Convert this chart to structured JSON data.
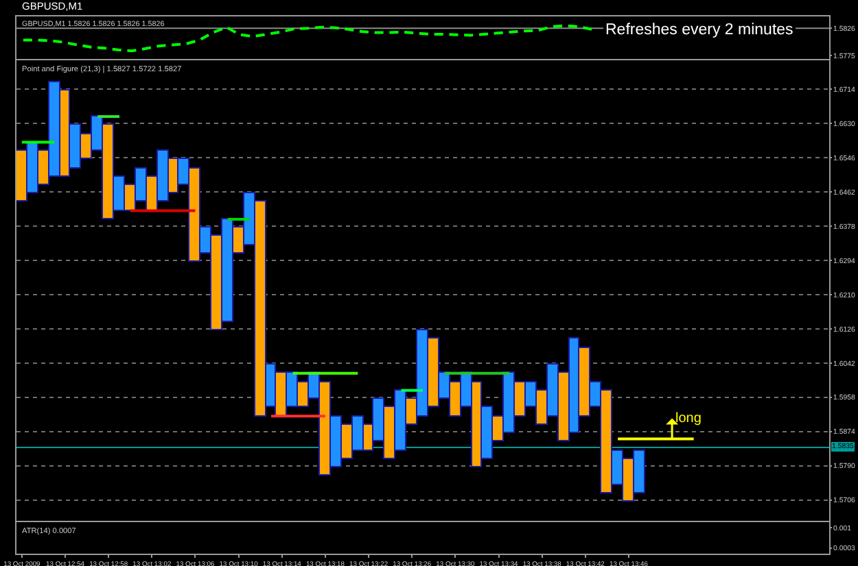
{
  "chart_data": [
    {
      "type": "line",
      "title": "GBPUSD,M1",
      "subtitle": "GBPUSD,M1 1.5826 1.5826 1.5826 1.5826",
      "categories": [
        null,
        null,
        null,
        null,
        null,
        null,
        null,
        null,
        null,
        null,
        null,
        null,
        null,
        null,
        null,
        null,
        null,
        null,
        null,
        null,
        null,
        null,
        null,
        null,
        null,
        null,
        null,
        null,
        null,
        null,
        null,
        null,
        null,
        null,
        null,
        null,
        null,
        null,
        null,
        null,
        null,
        null,
        null,
        null,
        null,
        null,
        null,
        null,
        null,
        null,
        null,
        null,
        null,
        null,
        null,
        null,
        null,
        null,
        null,
        null
      ],
      "series": [
        {
          "color": "#00ff00",
          "values": [
            1.5804,
            1.5804,
            1.5803,
            1.58,
            1.5795,
            1.5791,
            1.5789,
            1.5786,
            1.5784,
            1.5788,
            1.5793,
            1.5795,
            1.5797,
            1.5804,
            1.5818,
            1.5828,
            1.5814,
            1.5811,
            1.5815,
            1.5819,
            1.5825,
            1.5826,
            1.5828,
            1.5827,
            1.5824,
            1.582,
            1.5818,
            1.5818,
            1.5819,
            1.5817,
            1.5815,
            1.5815,
            1.5814,
            1.5813,
            1.5815,
            1.5817,
            1.5819,
            1.5821,
            1.5822,
            1.5829,
            1.5831,
            1.5829,
            1.5824,
            null,
            null,
            null,
            null,
            null,
            null,
            null,
            null,
            null,
            null,
            null,
            null,
            null,
            null,
            null,
            null,
            null
          ]
        }
      ],
      "line_style": "dashed",
      "ylim": [
        1.5769,
        1.5848
      ],
      "yticks": [
        1.5826,
        1.5775
      ],
      "tick_labels": "y",
      "ref_lines": [
        {
          "axis": "y",
          "value": 1.5826,
          "color": "#8c8c8c"
        }
      ],
      "annotations": [
        "Refreshes every 2 minutes"
      ]
    },
    {
      "type": "bar",
      "title": "Point and Figure (21,3) | 1.5827 1.5722 1.5827",
      "categories": [
        null,
        null,
        null,
        null,
        null,
        null,
        null,
        null,
        null,
        null,
        null,
        null,
        null,
        null,
        null,
        null,
        null,
        null,
        null,
        null,
        null,
        null,
        null,
        null,
        null,
        null,
        null,
        null,
        null,
        null,
        null,
        null,
        null,
        null,
        null,
        null,
        null,
        null,
        null,
        null,
        null,
        null,
        null,
        null,
        null,
        null,
        null,
        null,
        null,
        null,
        null,
        null,
        null,
        null,
        null,
        null,
        null,
        null,
        null,
        null,
        null,
        null,
        null,
        null,
        null,
        null,
        null,
        null,
        null,
        null,
        null,
        null,
        null,
        null,
        null
      ],
      "series": [
        {
          "values": [
            0.0126,
            0.0126,
            0.0084,
            0.0231,
            0.021,
            0.0105,
            0.0063,
            0.0084,
            0.0231,
            0.0084,
            0.0063,
            0.0084,
            0.0084,
            0.0126,
            0.0084,
            0.0063,
            0.0231,
            0.0063,
            0.0231,
            0.0252,
            0.0063,
            0.0126,
            0.0525,
            0.0105,
            0.0105,
            0.0084,
            0.0063,
            0.0063,
            0.0231,
            0.0126,
            0.0084,
            0.0084,
            0.0063,
            0.0105,
            0.0126,
            0.0147,
            0.0063,
            0.021,
            0.0168,
            0.0063,
            0.0084,
            0.0084,
            0.021,
            0.0126,
            0.0063,
            0.0147,
            0.0084,
            0.0063,
            0.0084,
            0.0126,
            0.0168,
            0.0231,
            0.0168,
            0.0063,
            0.0252,
            0.0084,
            0.0105,
            0.0105,
            null,
            null,
            null,
            null,
            null,
            null,
            null,
            null,
            null,
            null,
            null,
            null,
            null,
            null,
            null,
            null,
            null
          ],
          "base": [
            1.6437,
            1.6458,
            1.6479,
            1.65,
            1.65,
            1.6521,
            1.6542,
            1.6563,
            1.6395,
            1.6416,
            1.6416,
            1.6437,
            1.6416,
            1.6437,
            1.6458,
            1.6479,
            1.629,
            1.6311,
            1.6122,
            1.6143,
            1.6311,
            1.6332,
            1.5912,
            1.5933,
            1.5912,
            1.5933,
            1.5933,
            1.5954,
            1.5765,
            1.5786,
            1.5807,
            1.5828,
            1.5828,
            1.5849,
            1.5807,
            1.5828,
            1.5891,
            1.5912,
            1.5933,
            1.5954,
            1.5912,
            1.5933,
            1.5786,
            1.5807,
            1.5849,
            1.587,
            1.5912,
            1.5933,
            1.5891,
            1.5912,
            1.5849,
            1.587,
            1.5912,
            1.5933,
            1.5723,
            1.5744,
            1.5702,
            1.5723,
            null,
            null,
            null,
            null,
            null,
            null,
            null,
            null,
            null,
            null,
            null,
            null,
            null,
            null,
            null,
            null,
            null
          ],
          "colors": [
            "#ffa500",
            "#1e90ff",
            "#ffa500",
            "#1e90ff",
            "#ffa500",
            "#1e90ff",
            "#ffa500",
            "#1e90ff",
            "#ffa500",
            "#1e90ff",
            "#ffa500",
            "#1e90ff",
            "#ffa500",
            "#1e90ff",
            "#ffa500",
            "#1e90ff",
            "#ffa500",
            "#1e90ff",
            "#ffa500",
            "#1e90ff",
            "#ffa500",
            "#1e90ff",
            "#ffa500",
            "#1e90ff",
            "#ffa500",
            "#1e90ff",
            "#ffa500",
            "#1e90ff",
            "#ffa500",
            "#1e90ff",
            "#ffa500",
            "#1e90ff",
            "#ffa500",
            "#1e90ff",
            "#ffa500",
            "#1e90ff",
            "#ffa500",
            "#1e90ff",
            "#ffa500",
            "#1e90ff",
            "#ffa500",
            "#1e90ff",
            "#ffa500",
            "#1e90ff",
            "#ffa500",
            "#1e90ff",
            "#ffa500",
            "#1e90ff",
            "#ffa500",
            "#1e90ff",
            "#ffa500",
            "#1e90ff",
            "#ffa500",
            "#1e90ff",
            "#ffa500",
            "#1e90ff",
            "#ffa500",
            "#1e90ff",
            null,
            null,
            null,
            null,
            null,
            null,
            null,
            null,
            null,
            null,
            null,
            null,
            null,
            null,
            null,
            null,
            null
          ]
        },
        {
          "type": "line",
          "color": "#00ff00",
          "values": [
            1.6584,
            1.6584,
            1.6584,
            1.6584,
            null,
            null,
            null,
            null,
            null,
            null,
            null,
            null,
            null,
            null,
            null,
            null,
            null,
            null,
            null,
            null,
            null,
            null,
            null,
            null,
            null,
            null,
            null,
            null,
            null,
            null,
            null,
            null,
            null,
            null,
            null,
            null,
            null,
            null,
            null,
            null,
            null,
            null,
            null,
            null,
            null,
            null,
            null,
            null,
            null,
            null,
            null,
            null,
            null,
            null,
            null,
            null,
            null,
            null,
            null,
            null,
            null,
            null,
            null,
            null,
            null,
            null,
            null,
            null,
            null,
            null,
            null,
            null,
            null,
            null,
            null
          ]
        },
        {
          "type": "line",
          "color": "#33e633",
          "values": [
            null,
            null,
            null,
            null,
            null,
            null,
            null,
            1.6647,
            1.6647,
            1.6647,
            null,
            null,
            null,
            null,
            null,
            null,
            null,
            null,
            null,
            null,
            null,
            null,
            null,
            null,
            null,
            null,
            null,
            null,
            null,
            null,
            null,
            null,
            null,
            null,
            null,
            null,
            null,
            null,
            null,
            null,
            null,
            null,
            null,
            null,
            null,
            null,
            null,
            null,
            null,
            null,
            null,
            null,
            null,
            null,
            null,
            null,
            null,
            null,
            null,
            null,
            null,
            null,
            null,
            null,
            null,
            null,
            null,
            null,
            null,
            null,
            null,
            null,
            null,
            null,
            null
          ]
        },
        {
          "type": "line",
          "color": "#00d400",
          "values": [
            null,
            null,
            null,
            null,
            null,
            null,
            null,
            null,
            null,
            null,
            null,
            null,
            null,
            null,
            null,
            null,
            null,
            null,
            null,
            1.6395,
            1.6395,
            1.6395,
            null,
            null,
            null,
            null,
            null,
            null,
            null,
            null,
            null,
            null,
            null,
            null,
            null,
            null,
            null,
            null,
            null,
            null,
            null,
            null,
            null,
            null,
            null,
            null,
            null,
            null,
            null,
            null,
            null,
            null,
            null,
            null,
            null,
            null,
            null,
            null,
            null,
            null,
            null,
            null,
            null,
            null,
            null,
            null,
            null,
            null,
            null,
            null,
            null,
            null,
            null,
            null,
            null
          ]
        },
        {
          "type": "line",
          "color": "#40ff00",
          "values": [
            null,
            null,
            null,
            null,
            null,
            null,
            null,
            null,
            null,
            null,
            null,
            null,
            null,
            null,
            null,
            null,
            null,
            null,
            null,
            null,
            null,
            null,
            null,
            null,
            null,
            1.6017,
            1.6017,
            1.6017,
            1.6017,
            1.6017,
            1.6017,
            1.6017,
            null,
            null,
            null,
            null,
            null,
            null,
            null,
            null,
            null,
            null,
            null,
            null,
            null,
            null,
            null,
            null,
            null,
            null,
            null,
            null,
            null,
            null,
            null,
            null,
            null,
            null,
            null,
            null,
            null,
            null,
            null,
            null,
            null,
            null,
            null,
            null,
            null,
            null,
            null,
            null,
            null,
            null,
            null
          ]
        },
        {
          "type": "line",
          "color": "#00ff55",
          "values": [
            null,
            null,
            null,
            null,
            null,
            null,
            null,
            null,
            null,
            null,
            null,
            null,
            null,
            null,
            null,
            null,
            null,
            null,
            null,
            null,
            null,
            null,
            null,
            null,
            null,
            null,
            null,
            null,
            null,
            null,
            null,
            null,
            null,
            null,
            null,
            1.5975,
            1.5975,
            1.5975,
            null,
            null,
            null,
            null,
            null,
            null,
            null,
            null,
            null,
            null,
            null,
            null,
            null,
            null,
            null,
            null,
            null,
            null,
            null,
            null,
            null,
            null,
            null,
            null,
            null,
            null,
            null,
            null,
            null,
            null,
            null,
            null,
            null,
            null,
            null,
            null,
            null
          ]
        },
        {
          "type": "line",
          "color": "#1ec81e",
          "values": [
            null,
            null,
            null,
            null,
            null,
            null,
            null,
            null,
            null,
            null,
            null,
            null,
            null,
            null,
            null,
            null,
            null,
            null,
            null,
            null,
            null,
            null,
            null,
            null,
            null,
            null,
            null,
            null,
            null,
            null,
            null,
            null,
            null,
            null,
            null,
            null,
            null,
            null,
            null,
            1.6017,
            1.6017,
            1.6017,
            1.6017,
            1.6017,
            1.6017,
            1.6017,
            null,
            null,
            null,
            null,
            null,
            null,
            null,
            null,
            null,
            null,
            null,
            null,
            null,
            null,
            null,
            null,
            null,
            null,
            null,
            null,
            null,
            null,
            null,
            null,
            null,
            null,
            null,
            null,
            null
          ]
        },
        {
          "type": "line",
          "color": "#e00000",
          "values": [
            null,
            null,
            null,
            null,
            null,
            null,
            null,
            null,
            null,
            null,
            1.6416,
            1.6416,
            1.6416,
            1.6416,
            1.6416,
            1.6416,
            1.6416,
            null,
            null,
            null,
            null,
            null,
            null,
            null,
            null,
            null,
            null,
            null,
            null,
            null,
            null,
            null,
            null,
            null,
            null,
            null,
            null,
            null,
            null,
            null,
            null,
            null,
            null,
            null,
            null,
            null,
            null,
            null,
            null,
            null,
            null,
            null,
            null,
            null,
            null,
            null,
            null,
            null,
            null,
            null,
            null,
            null,
            null,
            null,
            null,
            null,
            null,
            null,
            null,
            null,
            null,
            null,
            null,
            null,
            null
          ]
        },
        {
          "type": "line",
          "color": "#ff3030",
          "values": [
            null,
            null,
            null,
            null,
            null,
            null,
            null,
            null,
            null,
            null,
            null,
            null,
            null,
            null,
            null,
            null,
            null,
            null,
            null,
            null,
            null,
            null,
            null,
            1.5912,
            1.5912,
            1.5912,
            1.5912,
            1.5912,
            1.5912,
            null,
            null,
            null,
            null,
            null,
            null,
            null,
            null,
            null,
            null,
            null,
            null,
            null,
            null,
            null,
            null,
            null,
            null,
            null,
            null,
            null,
            null,
            null,
            null,
            null,
            null,
            null,
            null,
            null,
            null,
            null,
            null,
            null,
            null,
            null,
            null,
            null,
            null,
            null,
            null,
            null,
            null,
            null,
            null,
            null,
            null
          ]
        },
        {
          "type": "line",
          "color": "#ffff00",
          "values": [
            null,
            null,
            null,
            null,
            null,
            null,
            null,
            null,
            null,
            null,
            null,
            null,
            null,
            null,
            null,
            null,
            null,
            null,
            null,
            null,
            null,
            null,
            null,
            null,
            null,
            null,
            null,
            null,
            null,
            null,
            null,
            null,
            null,
            null,
            null,
            null,
            null,
            null,
            null,
            null,
            null,
            null,
            null,
            null,
            null,
            null,
            null,
            null,
            null,
            null,
            null,
            null,
            null,
            null,
            null,
            1.5856,
            1.5856,
            1.5856,
            1.5856,
            1.5856,
            1.5856,
            1.5856,
            1.5856,
            null,
            null,
            null,
            null,
            null,
            null,
            null,
            null,
            null,
            null,
            null,
            null
          ]
        }
      ],
      "ylim": [
        1.5655,
        1.6785
      ],
      "yticks": [
        1.6714,
        {
          "value": 1.663,
          "label": "1.6630"
        },
        1.6546,
        1.6462,
        1.6378,
        1.6294,
        {
          "value": 1.621,
          "label": "1.6210"
        },
        1.6126,
        1.6042,
        1.5958,
        1.5874,
        {
          "value": 1.579,
          "label": "1.5790"
        },
        1.5706
      ],
      "grid": "y",
      "tick_labels": "y",
      "ref_lines": [
        {
          "axis": "y",
          "value": 1.5835,
          "label": "1.5835",
          "color": "#009a9a"
        }
      ],
      "annotations": [
        {
          "text": "long",
          "y": 1.5856
        }
      ]
    },
    {
      "type": "line",
      "title": "ATR(14) 0.0007",
      "categories": [
        "13 Oct 2009",
        null,
        null,
        null,
        "13 Oct 12:54",
        null,
        null,
        null,
        "13 Oct 12:58",
        null,
        null,
        null,
        "13 Oct 13:02",
        null,
        null,
        null,
        "13 Oct 13:06",
        null,
        null,
        null,
        "13 Oct 13:10",
        null,
        null,
        null,
        "13 Oct 13:14",
        null,
        null,
        null,
        "13 Oct 13:18",
        null,
        null,
        null,
        "13 Oct 13:22",
        null,
        null,
        null,
        "13 Oct 13:26",
        null,
        null,
        null,
        "13 Oct 13:30",
        null,
        null,
        null,
        "13 Oct 13:34",
        null,
        null,
        null,
        "13 Oct 13:38",
        null,
        null,
        null,
        "13 Oct 13:42",
        null,
        null,
        null,
        "13 Oct 13:46",
        null,
        null,
        null,
        null,
        null,
        null,
        null,
        null,
        null,
        null,
        null,
        null,
        null,
        null,
        null,
        null,
        null,
        null
      ],
      "ylim": [
        0.0001,
        0.0012
      ],
      "yticks": [
        0.001,
        0.0003
      ]
    }
  ]
}
